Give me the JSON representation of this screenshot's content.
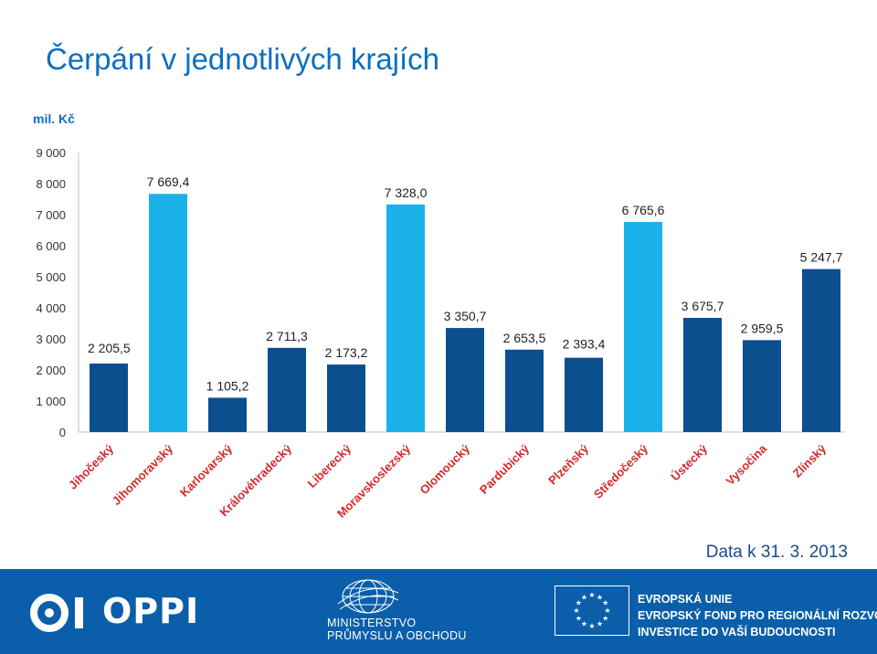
{
  "page": {
    "title": "Čerpání v jednotlivých krajích",
    "unit_label": "mil. Kč",
    "date_note": "Data k 31. 3. 2013"
  },
  "colors": {
    "title": "#0b6fc0",
    "bar_dark": "#0b4f8f",
    "bar_light": "#1ab2e8",
    "category_label": "#d42a2a",
    "footer_bg": "#0b5faa"
  },
  "chart_data": {
    "type": "bar",
    "categories": [
      "Jihočeský",
      "Jihomoravský",
      "Karlovarský",
      "Královéhradecký",
      "Liberecký",
      "Moravskoslezský",
      "Olomoucký",
      "Pardubický",
      "Plzeňský",
      "Středočeský",
      "Ústecký",
      "Vysočina",
      "Zlínský"
    ],
    "values": [
      2205.5,
      7669.4,
      1105.2,
      2711.3,
      2173.2,
      7328.0,
      3350.7,
      2653.5,
      2393.4,
      6765.6,
      3675.7,
      2959.5,
      5247.7
    ],
    "value_labels": [
      "2 205,5",
      "7 669,4",
      "1 105,2",
      "2 711,3",
      "2 173,2",
      "7 328,0",
      "3 350,7",
      "2 653,5",
      "2 393,4",
      "6 765,6",
      "3 675,7",
      "2 959,5",
      "5 247,7"
    ],
    "bar_colors": [
      "dark",
      "light",
      "dark",
      "dark",
      "dark",
      "light",
      "dark",
      "dark",
      "dark",
      "light",
      "dark",
      "dark",
      "dark"
    ],
    "y_ticks": [
      0,
      1000,
      2000,
      3000,
      4000,
      5000,
      6000,
      7000,
      8000,
      9000
    ],
    "y_tick_labels": [
      "0",
      "1 000",
      "2 000",
      "3 000",
      "4 000",
      "5 000",
      "6 000",
      "7 000",
      "8 000",
      "9 000"
    ],
    "ylim": [
      0,
      9000
    ],
    "title": "Čerpání v jednotlivých krajích",
    "ylabel": "mil. Kč",
    "xlabel": "",
    "grid": false,
    "legend": "none"
  },
  "footer": {
    "oppi_logo_text": "OPPI",
    "ministry_line1": "MINISTERSTVO",
    "ministry_line2": "PRŮMYSLU A OBCHODU",
    "eu_line1": "EVROPSKÁ UNIE",
    "eu_line2": "EVROPSKÝ FOND PRO REGIONÁLNÍ ROZVOJ",
    "eu_line3": "INVESTICE DO VAŠÍ BUDOUCNOSTI"
  }
}
